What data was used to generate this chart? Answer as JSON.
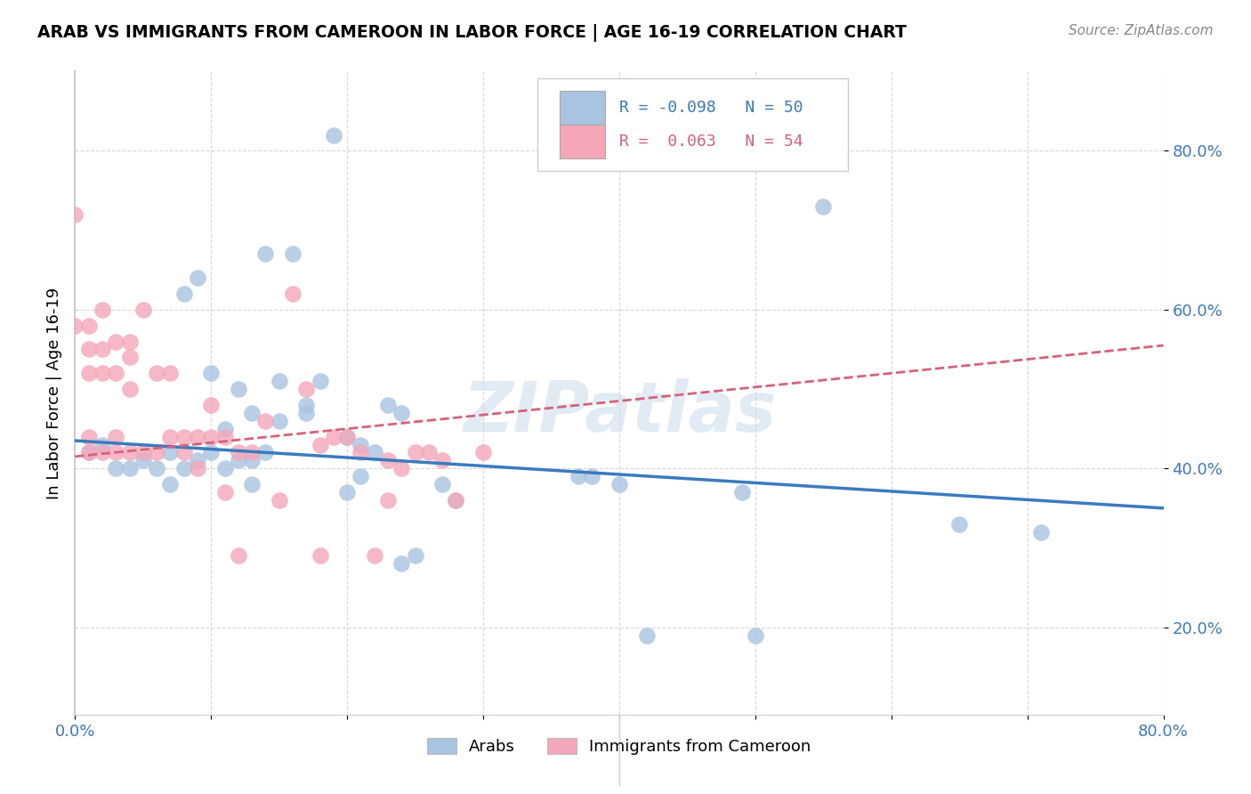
{
  "title": "ARAB VS IMMIGRANTS FROM CAMEROON IN LABOR FORCE | AGE 16-19 CORRELATION CHART",
  "source": "Source: ZipAtlas.com",
  "ylabel": "In Labor Force | Age 16-19",
  "xlim": [
    0.0,
    0.8
  ],
  "ylim": [
    0.09,
    0.9
  ],
  "ytick_vals": [
    0.2,
    0.4,
    0.6,
    0.8
  ],
  "ytick_labels": [
    "20.0%",
    "40.0%",
    "60.0%",
    "80.0%"
  ],
  "xtick_vals": [
    0.0,
    0.1,
    0.2,
    0.3,
    0.4,
    0.5,
    0.6,
    0.7,
    0.8
  ],
  "legend_label1": "Arabs",
  "legend_label2": "Immigrants from Cameroon",
  "R1": "-0.098",
  "N1": "50",
  "R2": "0.063",
  "N2": "54",
  "blue_color": "#a8c4e0",
  "pink_color": "#f4a7b9",
  "blue_line_color": "#3a7abf",
  "pink_line_color": "#d9607a",
  "blue_x": [
    0.19,
    0.55,
    0.14,
    0.16,
    0.09,
    0.08,
    0.1,
    0.12,
    0.11,
    0.13,
    0.12,
    0.15,
    0.13,
    0.18,
    0.14,
    0.15,
    0.17,
    0.2,
    0.17,
    0.2,
    0.21,
    0.22,
    0.21,
    0.23,
    0.24,
    0.25,
    0.24,
    0.27,
    0.28,
    0.37,
    0.4,
    0.42,
    0.49,
    0.5,
    0.65,
    0.71,
    0.01,
    0.02,
    0.03,
    0.04,
    0.05,
    0.06,
    0.07,
    0.07,
    0.08,
    0.09,
    0.1,
    0.11,
    0.13,
    0.38
  ],
  "blue_y": [
    0.82,
    0.73,
    0.67,
    0.67,
    0.64,
    0.62,
    0.52,
    0.5,
    0.45,
    0.47,
    0.41,
    0.46,
    0.38,
    0.51,
    0.42,
    0.51,
    0.48,
    0.44,
    0.47,
    0.37,
    0.43,
    0.42,
    0.39,
    0.48,
    0.47,
    0.29,
    0.28,
    0.38,
    0.36,
    0.39,
    0.38,
    0.19,
    0.37,
    0.19,
    0.33,
    0.32,
    0.42,
    0.43,
    0.4,
    0.4,
    0.41,
    0.4,
    0.42,
    0.38,
    0.4,
    0.41,
    0.42,
    0.4,
    0.41,
    0.39
  ],
  "pink_x": [
    0.0,
    0.0,
    0.01,
    0.01,
    0.01,
    0.01,
    0.01,
    0.02,
    0.02,
    0.02,
    0.02,
    0.03,
    0.03,
    0.03,
    0.03,
    0.04,
    0.04,
    0.04,
    0.04,
    0.05,
    0.05,
    0.06,
    0.06,
    0.07,
    0.07,
    0.08,
    0.08,
    0.09,
    0.09,
    0.1,
    0.1,
    0.11,
    0.11,
    0.12,
    0.12,
    0.13,
    0.14,
    0.15,
    0.16,
    0.17,
    0.18,
    0.18,
    0.19,
    0.2,
    0.21,
    0.22,
    0.23,
    0.23,
    0.24,
    0.25,
    0.26,
    0.27,
    0.28,
    0.3
  ],
  "pink_y": [
    0.72,
    0.58,
    0.58,
    0.55,
    0.52,
    0.44,
    0.42,
    0.6,
    0.55,
    0.52,
    0.42,
    0.56,
    0.52,
    0.44,
    0.42,
    0.56,
    0.54,
    0.5,
    0.42,
    0.6,
    0.42,
    0.52,
    0.42,
    0.52,
    0.44,
    0.44,
    0.42,
    0.44,
    0.4,
    0.48,
    0.44,
    0.44,
    0.37,
    0.42,
    0.29,
    0.42,
    0.46,
    0.36,
    0.62,
    0.5,
    0.43,
    0.29,
    0.44,
    0.44,
    0.42,
    0.29,
    0.41,
    0.36,
    0.4,
    0.42,
    0.42,
    0.41,
    0.36,
    0.42
  ]
}
